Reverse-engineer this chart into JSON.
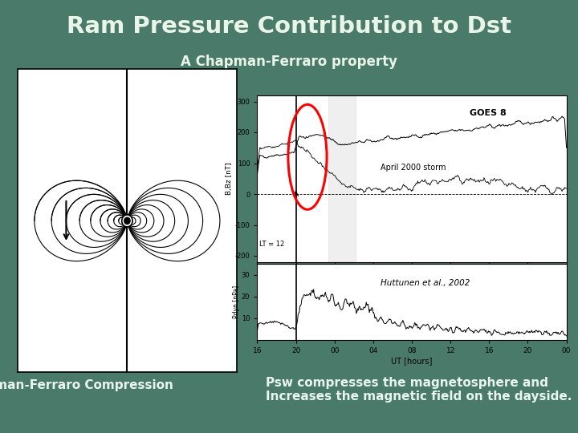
{
  "title": "Ram Pressure Contribution to Dst",
  "subtitle": "A Chapman-Ferraro property",
  "bg_color": "#4a7a6a",
  "title_color": "#e8f5e8",
  "subtitle_color": "#e8f5e8",
  "left_label": "Chapman-Ferraro Compression",
  "bottom_text_line1": "Psw compresses the magnetosphere and",
  "bottom_text_line2": "Increases the magnetic field on the dayside.",
  "annotation_goes8": "GOES 8",
  "annotation_storm": "April 2000 storm",
  "annotation_huttunen": "Huttunen et al., 2002",
  "text_color": "#e8f5f0",
  "label_color": "#e8f5f0"
}
